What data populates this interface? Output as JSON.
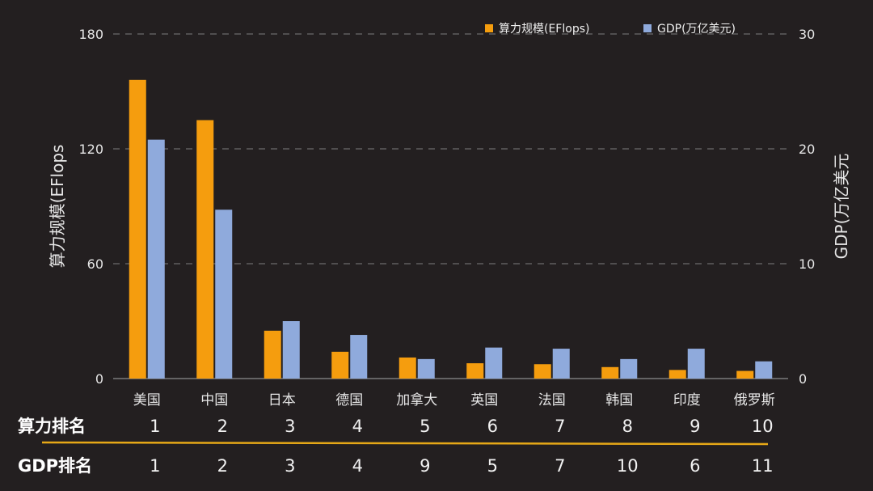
{
  "chart_data": {
    "type": "bar",
    "categories": [
      "美国",
      "中国",
      "日本",
      "德国",
      "加拿大",
      "英国",
      "法国",
      "韩国",
      "印度",
      "俄罗斯"
    ],
    "series": [
      {
        "name": "算力规模(EFlops)",
        "axis": "left",
        "color": "#f59d0e",
        "values": [
          156,
          135,
          25,
          14,
          11,
          8,
          7.5,
          6,
          4.5,
          4
        ]
      },
      {
        "name": "GDP(万亿美元)",
        "axis": "right",
        "color": "#8faadc",
        "values": [
          20.8,
          14.7,
          5.0,
          3.8,
          1.7,
          2.7,
          2.6,
          1.7,
          2.6,
          1.5
        ]
      }
    ],
    "left_axis": {
      "title": "算力规模(EFlops",
      "ylim": [
        0,
        180
      ],
      "ticks": [
        0,
        60,
        120,
        180
      ]
    },
    "right_axis": {
      "title": "GDP(万亿美元",
      "ylim": [
        0,
        30
      ],
      "ticks": [
        0,
        10,
        20,
        30
      ]
    },
    "legend_position": "top-right",
    "grid": true
  },
  "rank_table": {
    "compute_rank": {
      "label": "算力排名",
      "values": [
        "1",
        "2",
        "3",
        "4",
        "5",
        "6",
        "7",
        "8",
        "9",
        "10"
      ]
    },
    "gdp_rank": {
      "label": "GDP排名",
      "values": [
        "1",
        "2",
        "3",
        "4",
        "9",
        "5",
        "7",
        "10",
        "6",
        "11"
      ]
    },
    "divider_color": "#e6a817"
  },
  "colors": {
    "background": "#231f20",
    "grid": "#6b6b6b",
    "text": "#e6e6e6"
  }
}
